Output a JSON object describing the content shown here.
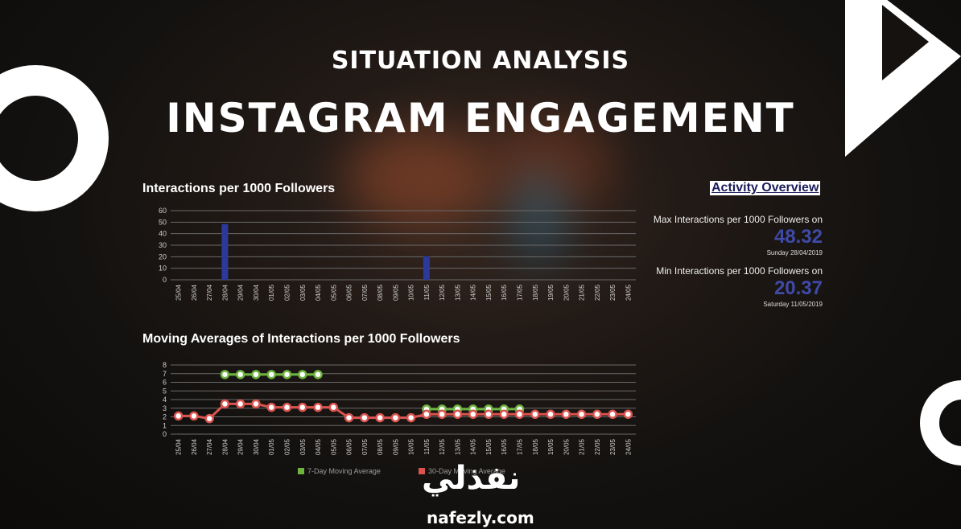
{
  "heading": {
    "subtitle": "SITUATION ANALYSIS",
    "title": "INSTAGRAM ENGAGEMENT"
  },
  "colors": {
    "bar": "#2b3a9a",
    "ma7": "#6cb33f",
    "ma30": "#d9534f",
    "overview_value": "#3f4aa8"
  },
  "chart_data": [
    {
      "type": "bar",
      "title": "Interactions per 1000 Followers",
      "categories": [
        "25/04",
        "26/04",
        "27/04",
        "28/04",
        "29/04",
        "30/04",
        "01/05",
        "02/05",
        "03/05",
        "04/05",
        "05/05",
        "06/05",
        "07/05",
        "08/05",
        "09/05",
        "10/05",
        "11/05",
        "12/05",
        "13/05",
        "14/05",
        "15/05",
        "16/05",
        "17/05",
        "18/05",
        "19/05",
        "20/05",
        "21/05",
        "22/05",
        "23/05",
        "24/05"
      ],
      "values": [
        0,
        0,
        0,
        48.32,
        0,
        0,
        0,
        0,
        0,
        0,
        0,
        0,
        0,
        0,
        0,
        0,
        20.37,
        0,
        0,
        0,
        0,
        0,
        0,
        0,
        0,
        0,
        0,
        0,
        0,
        0
      ],
      "yticks": [
        "0",
        "10",
        "20",
        "30",
        "40",
        "50",
        "60"
      ],
      "ylim": [
        0,
        60
      ]
    },
    {
      "type": "line",
      "title": "Moving Averages of Interactions per 1000 Followers",
      "categories": [
        "25/04",
        "26/04",
        "27/04",
        "28/04",
        "29/04",
        "30/04",
        "01/05",
        "02/05",
        "03/05",
        "04/05",
        "05/05",
        "06/05",
        "07/05",
        "08/05",
        "09/05",
        "10/05",
        "11/05",
        "12/05",
        "13/05",
        "14/05",
        "15/05",
        "16/05",
        "17/05",
        "18/05",
        "19/05",
        "20/05",
        "21/05",
        "22/05",
        "23/05",
        "24/05"
      ],
      "yticks": [
        "0",
        "1",
        "2",
        "3",
        "4",
        "5",
        "6",
        "7",
        "8"
      ],
      "ylim": [
        0,
        8
      ],
      "series": [
        {
          "name": "7-Day Moving Average",
          "values": [
            null,
            null,
            null,
            6.9,
            6.9,
            6.9,
            6.9,
            6.9,
            6.9,
            6.9,
            null,
            null,
            null,
            null,
            null,
            null,
            2.9,
            2.9,
            2.9,
            2.9,
            2.9,
            2.9,
            2.9,
            null,
            null,
            null,
            null,
            null,
            null,
            null
          ]
        },
        {
          "name": "30-Day Moving Average",
          "values": [
            2.1,
            2.1,
            1.8,
            3.5,
            3.5,
            3.5,
            3.1,
            3.1,
            3.1,
            3.1,
            3.1,
            1.9,
            1.9,
            1.9,
            1.9,
            1.9,
            2.3,
            2.3,
            2.3,
            2.3,
            2.3,
            2.3,
            2.3,
            2.3,
            2.3,
            2.3,
            2.3,
            2.3,
            2.3,
            2.3
          ]
        }
      ]
    }
  ],
  "overview": {
    "title": "Activity Overview",
    "max_label": "Max Interactions per 1000 Followers on",
    "max_value": "48.32",
    "max_date": "Sunday 28/04/2019",
    "min_label": "Min Interactions per 1000 Followers on",
    "min_value": "20.37",
    "min_date": "Saturday 11/05/2019"
  },
  "brand": {
    "arabic": "نفذلي",
    "latin": "nafezly.com"
  }
}
